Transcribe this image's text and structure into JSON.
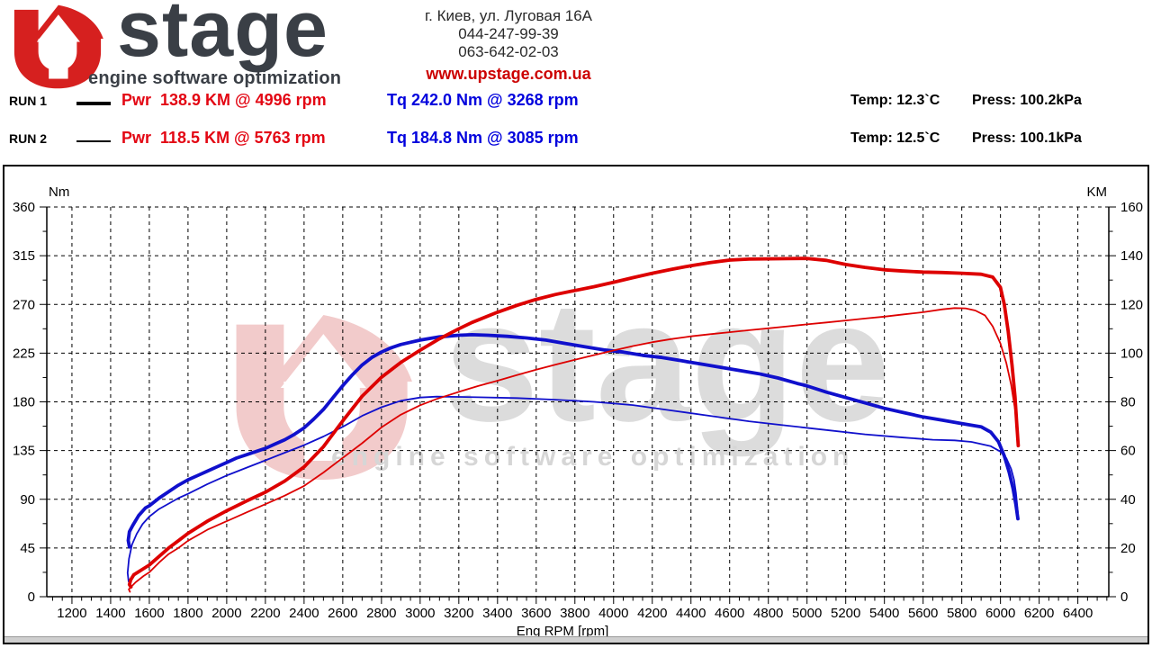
{
  "header": {
    "logo": {
      "brand_text": "stage",
      "tagline": "engine software optimization",
      "red": "#d6201f",
      "dark": "#3a3f46"
    },
    "address": "г. Киев, ул. Луговая 16А",
    "phone1": "044-247-99-39",
    "phone2": "063-642-02-03",
    "website": "www.upstage.com.ua"
  },
  "runs": [
    {
      "label": "RUN 1",
      "line": "thick",
      "power_label": "Pwr  138.9 KM @ 4996 rpm",
      "torque_label": "Tq 242.0 Nm @ 3268 rpm",
      "temp": "Temp: 12.3`C",
      "press": "Press: 100.2kPa"
    },
    {
      "label": "RUN 2",
      "line": "thin",
      "power_label": "Pwr  118.5 KM @ 5763 rpm",
      "torque_label": "Tq 184.8 Nm @ 3085 rpm",
      "temp": "Temp: 12.5`C",
      "press": "Press: 100.1kPa"
    }
  ],
  "chart_data": {
    "type": "line",
    "x_axis": {
      "label": "Eng RPM [rpm]",
      "ticks": [
        1200,
        1400,
        1600,
        1800,
        2000,
        2200,
        2400,
        2600,
        2800,
        3000,
        3200,
        3400,
        3600,
        3800,
        4000,
        4200,
        4400,
        4600,
        4800,
        5000,
        5200,
        5400,
        5600,
        5800,
        6000,
        6200,
        6400
      ],
      "minor_step": 50,
      "plot_rpm_range": [
        1070,
        6560
      ]
    },
    "y_left": {
      "label": "Nm",
      "min": 0,
      "max": 360,
      "ticks": [
        0,
        45,
        90,
        135,
        180,
        225,
        270,
        315,
        360
      ]
    },
    "y_right": {
      "label": "KM",
      "min": 0,
      "max": 160,
      "ticks": [
        0,
        20,
        40,
        60,
        80,
        100,
        120,
        140,
        160
      ]
    },
    "grid": "dashed",
    "colors": {
      "power": "#dd0000",
      "torque": "#1010cc",
      "axis": "#000000"
    },
    "watermark": {
      "u_fill": "#f2cbcb",
      "text": "stage",
      "tagline": "engine software optimization",
      "text_fill": "#dcdcdc",
      "tagline_fill": "#d6d6d6"
    },
    "series": [
      {
        "name": "RUN 1 Torque",
        "axis": "left",
        "unit": "Nm",
        "color": "#1010cc",
        "width": 3.8,
        "peak": {
          "value": 242.0,
          "rpm": 3268
        },
        "points": [
          [
            1497,
            46
          ],
          [
            1491,
            52
          ],
          [
            1497,
            60
          ],
          [
            1515,
            66
          ],
          [
            1545,
            75
          ],
          [
            1580,
            82
          ],
          [
            1600,
            84
          ],
          [
            1650,
            91
          ],
          [
            1700,
            97
          ],
          [
            1750,
            103
          ],
          [
            1800,
            108
          ],
          [
            1850,
            112
          ],
          [
            1900,
            116
          ],
          [
            1950,
            120
          ],
          [
            2000,
            124
          ],
          [
            2050,
            128
          ],
          [
            2100,
            131
          ],
          [
            2150,
            134
          ],
          [
            2200,
            137
          ],
          [
            2250,
            141
          ],
          [
            2300,
            145
          ],
          [
            2350,
            150
          ],
          [
            2400,
            156
          ],
          [
            2450,
            164
          ],
          [
            2500,
            173
          ],
          [
            2550,
            184
          ],
          [
            2600,
            195
          ],
          [
            2650,
            205
          ],
          [
            2700,
            214
          ],
          [
            2750,
            221
          ],
          [
            2800,
            226
          ],
          [
            2850,
            230
          ],
          [
            2900,
            233
          ],
          [
            2950,
            235
          ],
          [
            3000,
            237
          ],
          [
            3100,
            240
          ],
          [
            3200,
            241.5
          ],
          [
            3268,
            242
          ],
          [
            3350,
            241.5
          ],
          [
            3450,
            240.5
          ],
          [
            3550,
            239
          ],
          [
            3650,
            237
          ],
          [
            3750,
            234
          ],
          [
            3850,
            231
          ],
          [
            3950,
            228
          ],
          [
            4050,
            226
          ],
          [
            4150,
            223
          ],
          [
            4250,
            221
          ],
          [
            4350,
            218
          ],
          [
            4450,
            215
          ],
          [
            4550,
            212
          ],
          [
            4650,
            209
          ],
          [
            4750,
            206
          ],
          [
            4850,
            202
          ],
          [
            4950,
            197
          ],
          [
            4996,
            195
          ],
          [
            5100,
            189
          ],
          [
            5200,
            184
          ],
          [
            5300,
            179
          ],
          [
            5400,
            174
          ],
          [
            5500,
            170
          ],
          [
            5600,
            166
          ],
          [
            5700,
            163
          ],
          [
            5800,
            160
          ],
          [
            5900,
            157
          ],
          [
            5950,
            152
          ],
          [
            5990,
            143
          ],
          [
            6020,
            130
          ],
          [
            6045,
            115
          ],
          [
            6065,
            100
          ],
          [
            6080,
            85
          ],
          [
            6090,
            72
          ]
        ]
      },
      {
        "name": "RUN 2 Torque",
        "axis": "left",
        "unit": "Nm",
        "color": "#1010cc",
        "width": 1.8,
        "peak": {
          "value": 184.8,
          "rpm": 3085
        },
        "points": [
          [
            1493,
            14
          ],
          [
            1488,
            22
          ],
          [
            1495,
            35
          ],
          [
            1510,
            48
          ],
          [
            1535,
            58
          ],
          [
            1565,
            67
          ],
          [
            1600,
            74
          ],
          [
            1650,
            81
          ],
          [
            1700,
            86
          ],
          [
            1750,
            91
          ],
          [
            1800,
            95
          ],
          [
            1900,
            104
          ],
          [
            2000,
            112
          ],
          [
            2100,
            119
          ],
          [
            2200,
            126
          ],
          [
            2300,
            133
          ],
          [
            2400,
            140
          ],
          [
            2500,
            148
          ],
          [
            2600,
            157
          ],
          [
            2700,
            167
          ],
          [
            2800,
            175
          ],
          [
            2900,
            181
          ],
          [
            3000,
            184
          ],
          [
            3085,
            184.8
          ],
          [
            3200,
            184.6
          ],
          [
            3300,
            184.2
          ],
          [
            3500,
            183.5
          ],
          [
            3700,
            182
          ],
          [
            3900,
            180
          ],
          [
            4100,
            177
          ],
          [
            4300,
            172
          ],
          [
            4500,
            167
          ],
          [
            4700,
            162
          ],
          [
            4900,
            158
          ],
          [
            5100,
            154
          ],
          [
            5300,
            150
          ],
          [
            5500,
            147
          ],
          [
            5650,
            145
          ],
          [
            5763,
            144.4
          ],
          [
            5850,
            143
          ],
          [
            5950,
            139
          ],
          [
            6000,
            134
          ],
          [
            6030,
            128
          ],
          [
            6055,
            118
          ],
          [
            6070,
            108
          ],
          [
            6080,
            96
          ],
          [
            6090,
            78
          ]
        ]
      },
      {
        "name": "RUN 1 Power",
        "axis": "right",
        "unit": "KM",
        "color": "#dd0000",
        "width": 3.8,
        "peak": {
          "value": 138.9,
          "rpm": 4996
        },
        "points": [
          [
            1505,
            4
          ],
          [
            1497,
            5
          ],
          [
            1504,
            7
          ],
          [
            1520,
            9
          ],
          [
            1560,
            11
          ],
          [
            1600,
            13
          ],
          [
            1650,
            16.5
          ],
          [
            1700,
            20
          ],
          [
            1750,
            23
          ],
          [
            1800,
            26
          ],
          [
            1900,
            31
          ],
          [
            2000,
            35.3
          ],
          [
            2100,
            39.2
          ],
          [
            2200,
            42.9
          ],
          [
            2300,
            47.5
          ],
          [
            2400,
            53.3
          ],
          [
            2500,
            61.6
          ],
          [
            2600,
            72.2
          ],
          [
            2700,
            82.3
          ],
          [
            2800,
            90.1
          ],
          [
            2900,
            96.2
          ],
          [
            3000,
            101.2
          ],
          [
            3100,
            105.9
          ],
          [
            3200,
            110
          ],
          [
            3268,
            112.6
          ],
          [
            3400,
            116.8
          ],
          [
            3500,
            119.6
          ],
          [
            3600,
            122.1
          ],
          [
            3700,
            124.1
          ],
          [
            3800,
            125.7
          ],
          [
            3900,
            127.3
          ],
          [
            4000,
            129.1
          ],
          [
            4100,
            131
          ],
          [
            4200,
            132.8
          ],
          [
            4300,
            134.4
          ],
          [
            4400,
            135.9
          ],
          [
            4500,
            137.2
          ],
          [
            4600,
            138.2
          ],
          [
            4700,
            138.6
          ],
          [
            4800,
            138.7
          ],
          [
            4900,
            138.8
          ],
          [
            4996,
            138.9
          ],
          [
            5100,
            138.1
          ],
          [
            5200,
            136.4
          ],
          [
            5300,
            135.2
          ],
          [
            5400,
            134.2
          ],
          [
            5500,
            133.7
          ],
          [
            5600,
            133.3
          ],
          [
            5700,
            133.1
          ],
          [
            5800,
            132.8
          ],
          [
            5900,
            132.4
          ],
          [
            5960,
            131.2
          ],
          [
            6000,
            127
          ],
          [
            6020,
            120
          ],
          [
            6040,
            109
          ],
          [
            6060,
            95
          ],
          [
            6075,
            82
          ],
          [
            6085,
            70
          ],
          [
            6092,
            62
          ]
        ]
      },
      {
        "name": "RUN 2 Power",
        "axis": "right",
        "unit": "KM",
        "color": "#dd0000",
        "width": 1.8,
        "peak": {
          "value": 118.5,
          "rpm": 5763
        },
        "points": [
          [
            1500,
            2
          ],
          [
            1494,
            3
          ],
          [
            1505,
            4
          ],
          [
            1530,
            6
          ],
          [
            1570,
            8.5
          ],
          [
            1600,
            10
          ],
          [
            1650,
            14
          ],
          [
            1700,
            17.5
          ],
          [
            1750,
            20
          ],
          [
            1800,
            23
          ],
          [
            1900,
            27.5
          ],
          [
            2000,
            31
          ],
          [
            2100,
            34.5
          ],
          [
            2200,
            38
          ],
          [
            2300,
            41.5
          ],
          [
            2400,
            45.5
          ],
          [
            2500,
            51
          ],
          [
            2600,
            57
          ],
          [
            2700,
            63
          ],
          [
            2800,
            69.5
          ],
          [
            2900,
            74.7
          ],
          [
            3000,
            78.6
          ],
          [
            3085,
            81.2
          ],
          [
            3200,
            84.1
          ],
          [
            3300,
            86.5
          ],
          [
            3400,
            88.7
          ],
          [
            3500,
            91
          ],
          [
            3600,
            93.2
          ],
          [
            3700,
            95.3
          ],
          [
            3800,
            97.3
          ],
          [
            3900,
            99.2
          ],
          [
            4000,
            101.1
          ],
          [
            4100,
            102.9
          ],
          [
            4200,
            104.5
          ],
          [
            4300,
            105.8
          ],
          [
            4400,
            106.9
          ],
          [
            4500,
            107.8
          ],
          [
            4600,
            108.6
          ],
          [
            4700,
            109.4
          ],
          [
            4800,
            110.2
          ],
          [
            4900,
            111
          ],
          [
            5000,
            111.8
          ],
          [
            5100,
            112.6
          ],
          [
            5200,
            113.4
          ],
          [
            5300,
            114.2
          ],
          [
            5400,
            115
          ],
          [
            5500,
            115.9
          ],
          [
            5600,
            116.8
          ],
          [
            5700,
            118
          ],
          [
            5763,
            118.5
          ],
          [
            5820,
            118.4
          ],
          [
            5870,
            117.5
          ],
          [
            5920,
            115.5
          ],
          [
            5960,
            111
          ],
          [
            6000,
            104
          ],
          [
            6030,
            96
          ],
          [
            6055,
            87
          ],
          [
            6075,
            77
          ],
          [
            6085,
            69
          ],
          [
            6092,
            62
          ]
        ]
      }
    ]
  }
}
